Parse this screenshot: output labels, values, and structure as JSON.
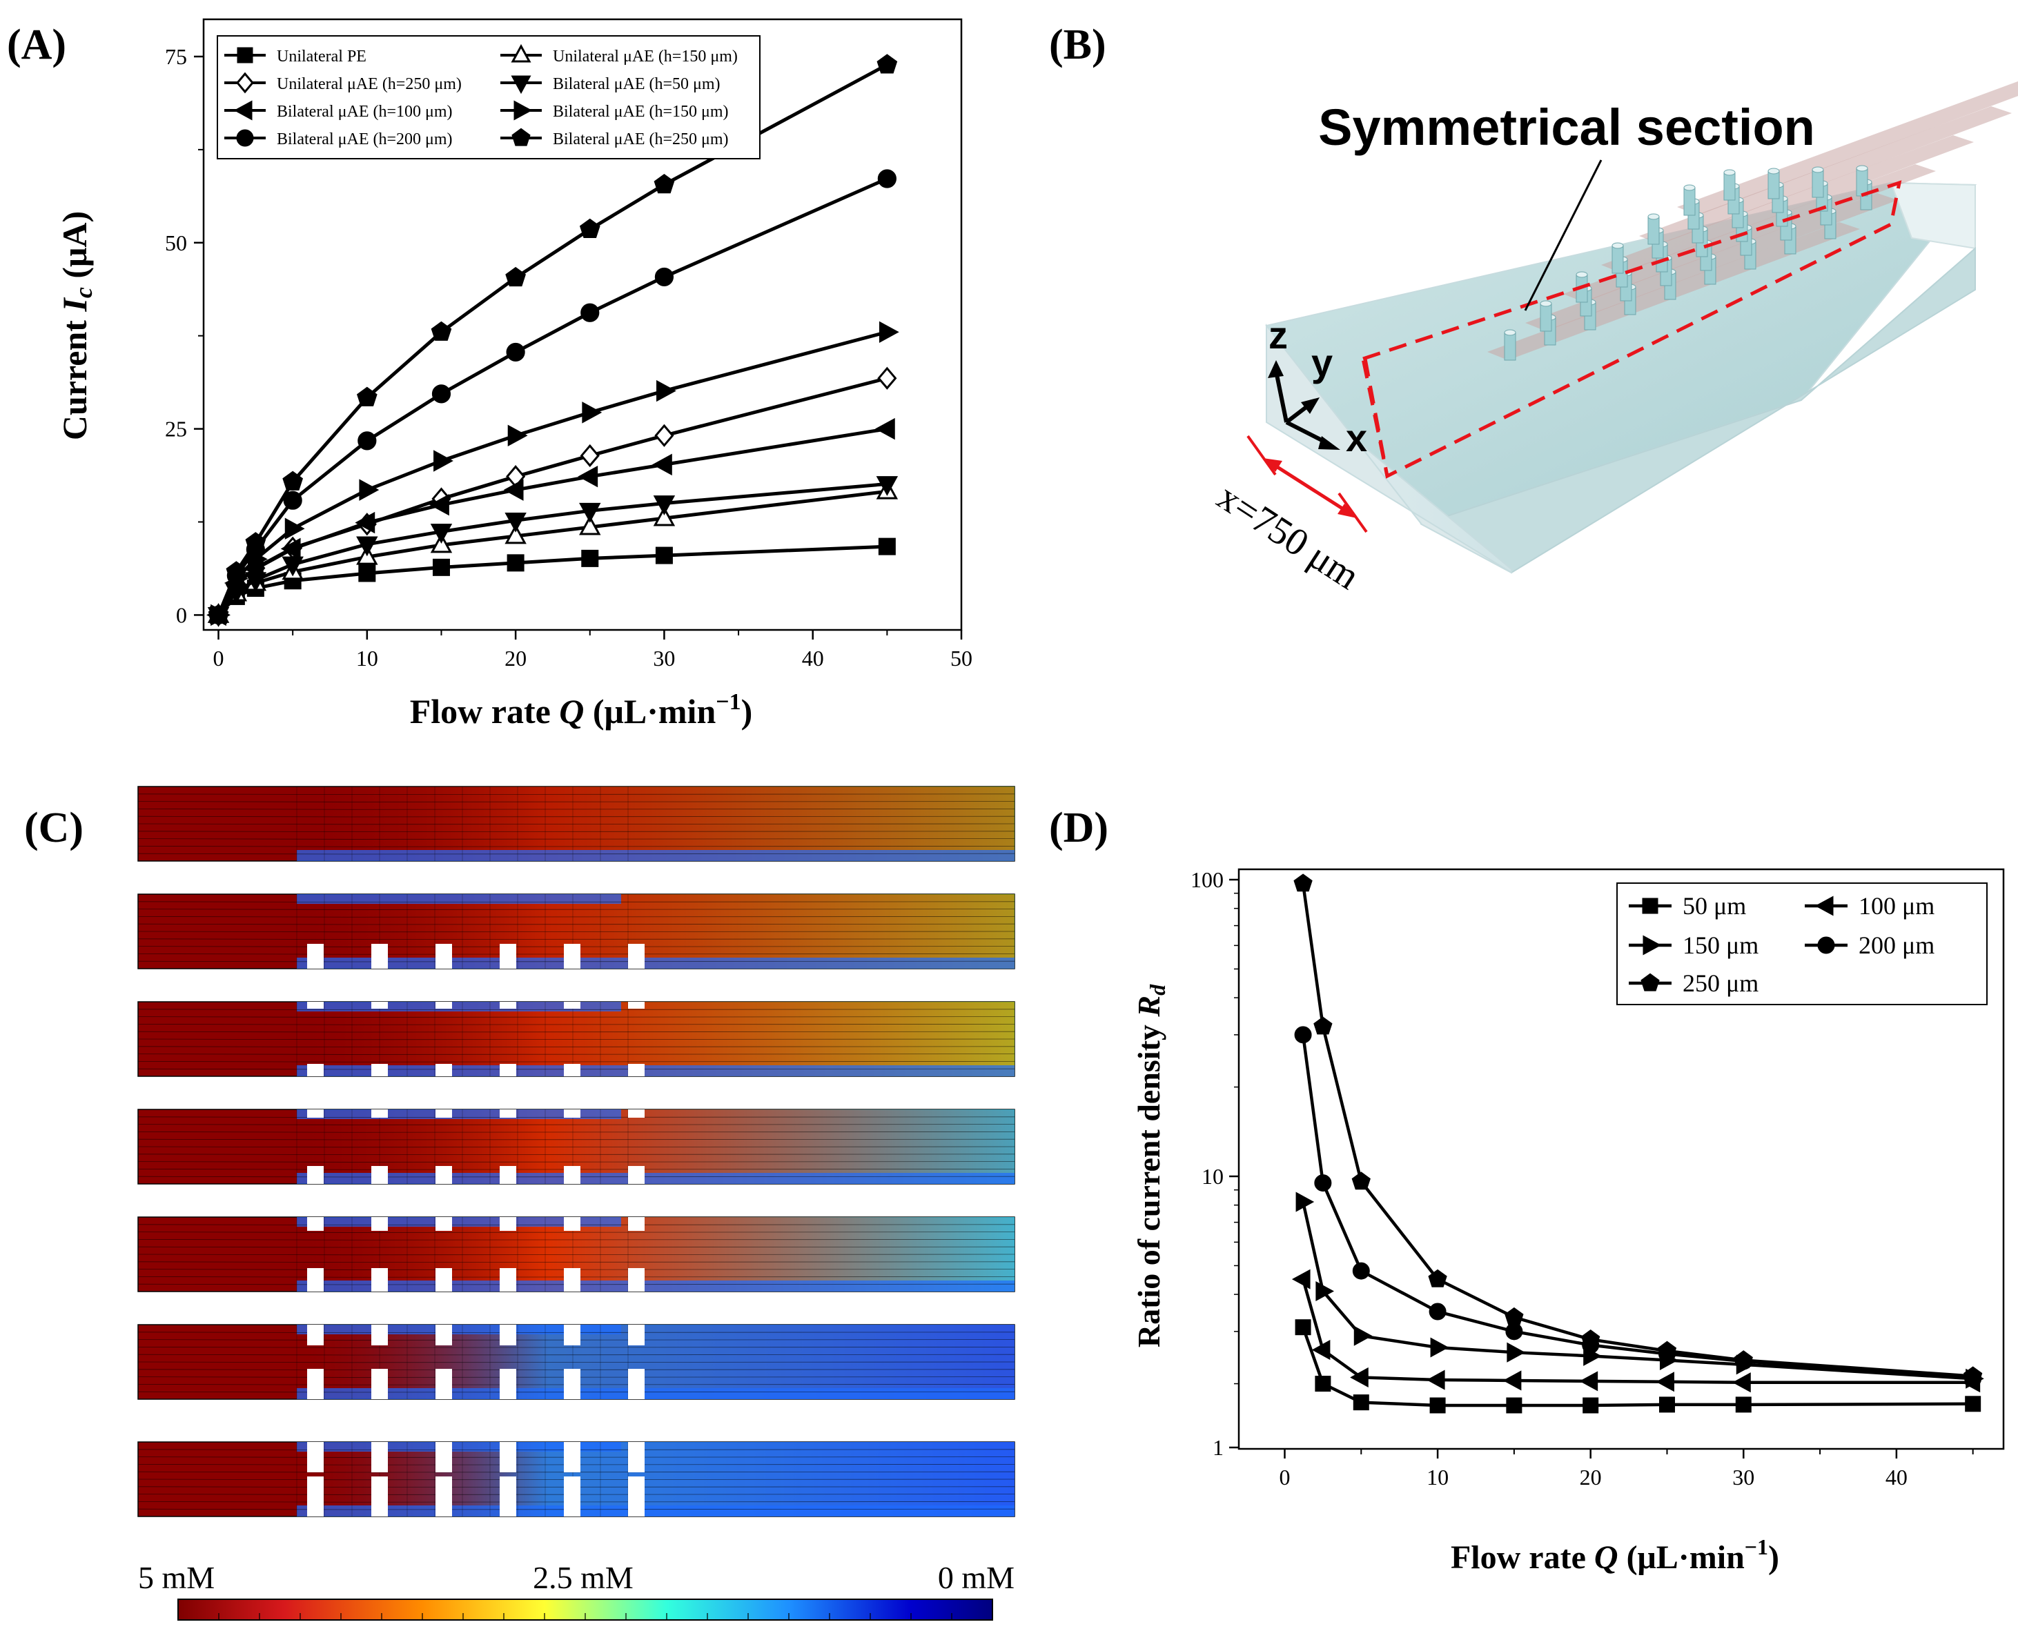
{
  "panels": {
    "a_label": "(A)",
    "b_label": "(B)",
    "c_label": "(C)",
    "d_label": "(D)"
  },
  "chart_data": [
    {
      "id": "A",
      "type": "line",
      "xlabel": "Flow rate Q (μL·min⁻¹)",
      "ylabel": "Current Ic (μA)",
      "xlim": [
        -1,
        50
      ],
      "ylim": [
        -2,
        80
      ],
      "xticks": [
        0,
        10,
        20,
        30,
        40,
        50
      ],
      "yticks": [
        0,
        25,
        50,
        75
      ],
      "x": [
        0,
        1.2,
        2.5,
        5,
        10,
        15,
        20,
        25,
        30,
        45
      ],
      "series": [
        {
          "name": "Unilateral PE",
          "marker": "square",
          "values": [
            0,
            2.5,
            3.6,
            4.6,
            5.6,
            6.4,
            7.0,
            7.6,
            8.0,
            9.2
          ]
        },
        {
          "name": "Unilateral μAE (h=150 μm)",
          "marker": "triangle-up-open",
          "values": [
            0,
            2.9,
            4.3,
            5.8,
            7.8,
            9.4,
            10.6,
            11.8,
            13.0,
            16.6
          ]
        },
        {
          "name": "Unilateral μAE (h=250 μm)",
          "marker": "diamond-open",
          "values": [
            0,
            4.2,
            6.3,
            9.0,
            12.2,
            15.6,
            18.6,
            21.4,
            24.1,
            31.8
          ]
        },
        {
          "name": "Bilateral μAE (h=50 μm)",
          "marker": "triangle-down",
          "values": [
            0,
            3.1,
            4.7,
            6.8,
            9.5,
            11.2,
            12.7,
            14.0,
            15.0,
            17.6
          ]
        },
        {
          "name": "Bilateral μAE (h=100 μm)",
          "marker": "triangle-left",
          "values": [
            0,
            4.3,
            6.2,
            8.9,
            12.4,
            14.8,
            16.8,
            18.6,
            20.2,
            25.0
          ]
        },
        {
          "name": "Bilateral μAE (h=150 μm)",
          "marker": "triangle-right",
          "values": [
            0,
            4.9,
            7.5,
            11.6,
            16.8,
            20.7,
            24.1,
            27.2,
            30.1,
            38.0
          ]
        },
        {
          "name": "Bilateral μAE (h=200 μm)",
          "marker": "circle",
          "values": [
            0,
            5.3,
            8.8,
            15.4,
            23.4,
            29.7,
            35.3,
            40.6,
            45.4,
            58.6
          ]
        },
        {
          "name": "Bilateral μAE (h=250 μm)",
          "marker": "pentagon",
          "values": [
            0,
            5.8,
            9.7,
            17.9,
            29.2,
            38.0,
            45.3,
            51.8,
            57.8,
            73.9
          ]
        }
      ]
    },
    {
      "id": "D",
      "type": "line",
      "xlabel": "Flow rate Q (μL·min⁻¹)",
      "ylabel": "Ratio of current density Rd",
      "yscale": "log",
      "xlim": [
        -3,
        47
      ],
      "ylim": [
        1,
        100
      ],
      "xticks": [
        0,
        10,
        20,
        30,
        40
      ],
      "yticks": [
        1,
        10,
        100
      ],
      "x": [
        1.2,
        2.5,
        5,
        10,
        15,
        20,
        25,
        30,
        45
      ],
      "series": [
        {
          "name": "50 μm",
          "marker": "square",
          "values": [
            3.1,
            2.0,
            1.73,
            1.69,
            1.69,
            1.69,
            1.7,
            1.7,
            1.71
          ]
        },
        {
          "name": "100 μm",
          "marker": "triangle-left",
          "values": [
            4.5,
            2.6,
            2.1,
            2.06,
            2.05,
            2.04,
            2.03,
            2.02,
            2.02
          ]
        },
        {
          "name": "150 μm",
          "marker": "triangle-right",
          "values": [
            8.2,
            4.1,
            2.9,
            2.65,
            2.55,
            2.48,
            2.4,
            2.32,
            2.08
          ]
        },
        {
          "name": "200 μm",
          "marker": "circle",
          "values": [
            30,
            9.5,
            4.8,
            3.5,
            3.0,
            2.7,
            2.52,
            2.38,
            2.08
          ]
        },
        {
          "name": "250 μm",
          "marker": "pentagon",
          "values": [
            97,
            32,
            9.6,
            4.5,
            3.35,
            2.82,
            2.58,
            2.4,
            2.12
          ]
        }
      ]
    }
  ],
  "legend_a": [
    "Unilateral PE",
    "Unilateral μAE (h=150 μm)",
    "Unilateral μAE (h=250 μm)",
    "Bilateral μAE (h=50 μm)",
    "Bilateral μAE (h=100 μm)",
    "Bilateral μAE (h=150 μm)",
    "Bilateral μAE (h=200 μm)",
    "Bilateral μAE (h=250 μm)"
  ],
  "legend_d": [
    "50 μm",
    "100 μm",
    "150 μm",
    "200 μm",
    "250 μm"
  ],
  "panel_b": {
    "title": "Symmetrical section",
    "axis_z": "z",
    "axis_y": "y",
    "axis_x": "x",
    "dimension": "x=750 μm"
  },
  "panel_c": {
    "colorbar_left": "5 mM",
    "colorbar_mid": "2.5 mM",
    "colorbar_right": "0 mM",
    "colors": {
      "high": "#8b0000",
      "mid": "#ffff00",
      "low": "#00008b"
    }
  }
}
